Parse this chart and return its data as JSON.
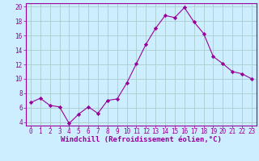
{
  "x": [
    0,
    1,
    2,
    3,
    4,
    5,
    6,
    7,
    8,
    9,
    10,
    11,
    12,
    13,
    14,
    15,
    16,
    17,
    18,
    19,
    20,
    21,
    22,
    23
  ],
  "y": [
    6.7,
    7.3,
    6.3,
    6.1,
    3.8,
    5.1,
    6.1,
    5.2,
    7.0,
    7.2,
    9.4,
    12.1,
    14.8,
    17.0,
    18.8,
    18.5,
    19.9,
    17.9,
    16.3,
    13.1,
    12.1,
    11.0,
    10.7,
    10.0
  ],
  "line_color": "#990099",
  "marker": "D",
  "marker_size": 2.2,
  "background_color": "#cceeff",
  "grid_color": "#aacccc",
  "xlabel": "Windchill (Refroidissement éolien,°C)",
  "xlabel_color": "#990099",
  "tick_color": "#990099",
  "ylim": [
    3.5,
    20.5
  ],
  "yticks": [
    4,
    6,
    8,
    10,
    12,
    14,
    16,
    18,
    20
  ],
  "xlim": [
    -0.5,
    23.5
  ],
  "spine_color": "#990099",
  "tick_fontsize": 5.5,
  "xlabel_fontsize": 6.5
}
